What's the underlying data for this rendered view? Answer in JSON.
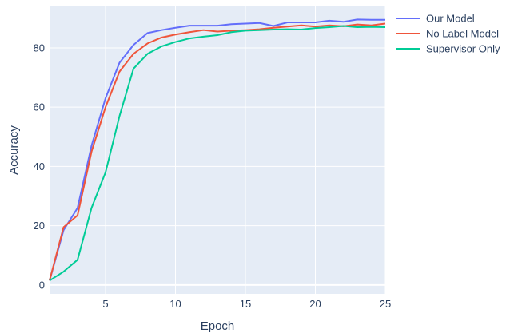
{
  "chart_data": {
    "type": "line",
    "xlabel": "Epoch",
    "ylabel": "Accuracy",
    "xlim": [
      1,
      25
    ],
    "ylim": [
      -3,
      94
    ],
    "xticks": [
      5,
      10,
      15,
      20,
      25
    ],
    "yticks": [
      0,
      20,
      40,
      60,
      80
    ],
    "grid": true,
    "legend": "top-right, outside plot",
    "x": [
      1,
      2,
      3,
      4,
      5,
      6,
      7,
      8,
      9,
      10,
      11,
      12,
      13,
      14,
      15,
      16,
      17,
      18,
      19,
      20,
      21,
      22,
      23,
      24,
      25
    ],
    "series": [
      {
        "name": "Our Model",
        "color": "#636efa",
        "values": [
          1.5,
          18.5,
          26,
          47,
          63,
          75,
          81,
          85,
          86,
          86.8,
          87.5,
          87.5,
          87.5,
          88,
          88.2,
          88.4,
          87.4,
          88.6,
          88.6,
          88.6,
          89.2,
          88.8,
          89.6,
          89.5,
          89.5
        ]
      },
      {
        "name": "No Label Model",
        "color": "#ef553b",
        "values": [
          1.5,
          19.5,
          23.5,
          45,
          60,
          72,
          78,
          81.5,
          83.5,
          84.5,
          85.3,
          86,
          85.5,
          85.8,
          86,
          86.3,
          86.8,
          87.2,
          87.6,
          87.2,
          87.6,
          87.3,
          87.9,
          87.6,
          88.2
        ]
      },
      {
        "name": "Supervisor Only",
        "color": "#00cc96",
        "values": [
          1.5,
          4.5,
          8.5,
          26,
          38,
          57,
          73,
          78,
          80.5,
          82,
          83.2,
          83.8,
          84.3,
          85.3,
          85.8,
          86,
          86.2,
          86.3,
          86.2,
          86.7,
          87,
          87.4,
          87,
          87.1,
          87
        ]
      }
    ]
  }
}
